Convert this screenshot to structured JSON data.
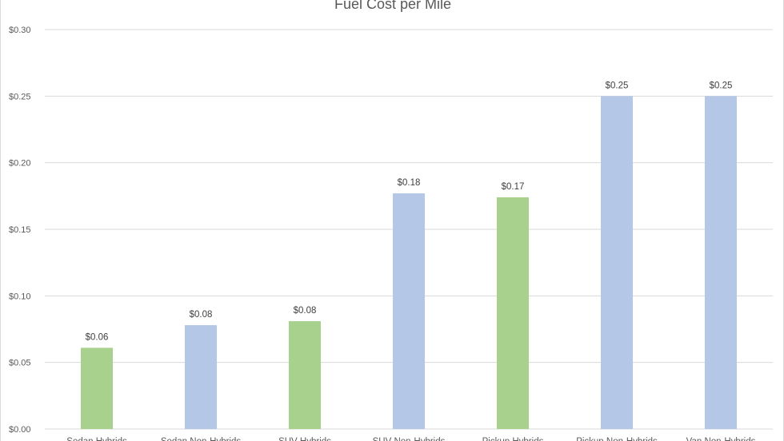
{
  "chart_data": {
    "type": "bar",
    "title": "Fuel Cost per Mile",
    "categories": [
      "Sedan Hybrids",
      "Sedan Non-Hybrids",
      "SUV Hybrids",
      "SUV Non-Hybrids",
      "Pickup Hybrids",
      "Pickup Non-Hybrids",
      "Van Non-Hybrids"
    ],
    "values": [
      0.061,
      0.078,
      0.081,
      0.177,
      0.174,
      0.25,
      0.25
    ],
    "data_labels": [
      "$0.06",
      "$0.08",
      "$0.08",
      "$0.18",
      "$0.17",
      "$0.25",
      "$0.25"
    ],
    "bar_colors": [
      "#a9d18e",
      "#b4c7e7",
      "#a9d18e",
      "#b4c7e7",
      "#a9d18e",
      "#b4c7e7",
      "#b4c7e7"
    ],
    "y_ticks": [
      "$0.00",
      "$0.05",
      "$0.10",
      "$0.15",
      "$0.20",
      "$0.25",
      "$0.30"
    ],
    "ylim": [
      0,
      0.3
    ],
    "xlabel": "",
    "ylabel": "",
    "grid": true,
    "gridline_color": "#d9d9d9",
    "legend": "none"
  }
}
